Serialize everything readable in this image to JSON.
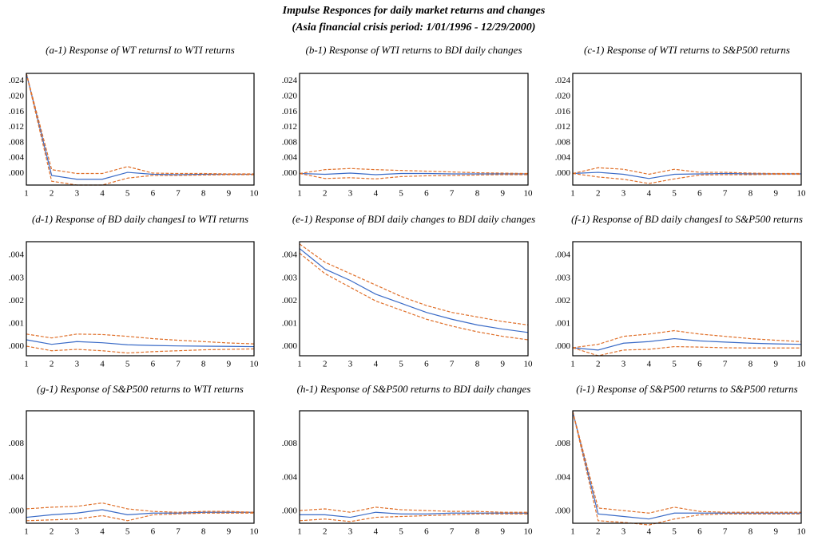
{
  "header": {
    "title": "Impulse Responces for daily market returns and changes",
    "subtitle": "(Asia financial crisis period: 1/01/1996 - 12/29/2000)"
  },
  "chart_data": [
    {
      "type": "line",
      "title": "(a-1) Response of WT returnsI to WTI returns",
      "x": [
        1,
        2,
        3,
        4,
        5,
        6,
        7,
        8,
        9,
        10
      ],
      "xlim": [
        1,
        10
      ],
      "xticks": [
        1,
        2,
        3,
        4,
        5,
        6,
        7,
        8,
        9,
        10
      ],
      "ylim": [
        -0.003,
        0.026
      ],
      "yticks": [
        {
          "value": 0,
          "label": ".000"
        },
        {
          "value": 0.004,
          "label": ".004"
        },
        {
          "value": 0.008,
          "label": ".008"
        },
        {
          "value": 0.012,
          "label": ".012"
        },
        {
          "value": 0.016,
          "label": ".016"
        },
        {
          "value": 0.02,
          "label": ".020"
        },
        {
          "value": 0.024,
          "label": ".024"
        }
      ],
      "grid": false,
      "series": [
        {
          "color": "#3a6bc7",
          "dash": false,
          "values": [
            0.026,
            -0.0005,
            -0.0015,
            -0.0015,
            0.0003,
            -0.0002,
            -0.0003,
            -0.0002,
            -0.0002,
            -0.0002
          ]
        },
        {
          "color": "#e0702a",
          "dash": true,
          "values": [
            0.026,
            0.001,
            0,
            0,
            0.0018,
            0.0001,
            0,
            0,
            -0.0001,
            -0.0001
          ]
        },
        {
          "color": "#e0702a",
          "dash": true,
          "values": [
            0.026,
            -0.002,
            -0.003,
            -0.003,
            -0.0012,
            -0.0005,
            -0.0005,
            -0.0004,
            -0.0003,
            -0.0003
          ]
        }
      ]
    },
    {
      "type": "line",
      "title": "(b-1) Response of WTI returns to BDI daily changes",
      "x": [
        1,
        2,
        3,
        4,
        5,
        6,
        7,
        8,
        9,
        10
      ],
      "xlim": [
        1,
        10
      ],
      "xticks": [
        1,
        2,
        3,
        4,
        5,
        6,
        7,
        8,
        9,
        10
      ],
      "ylim": [
        -0.003,
        0.026
      ],
      "yticks": [
        {
          "value": 0,
          "label": ".000"
        },
        {
          "value": 0.004,
          "label": ".004"
        },
        {
          "value": 0.008,
          "label": ".008"
        },
        {
          "value": 0.012,
          "label": ".012"
        },
        {
          "value": 0.016,
          "label": ".016"
        },
        {
          "value": 0.02,
          "label": ".020"
        },
        {
          "value": 0.024,
          "label": ".024"
        }
      ],
      "grid": false,
      "series": [
        {
          "color": "#3a6bc7",
          "dash": false,
          "values": [
            0,
            -0.0002,
            0.0001,
            -0.0003,
            0,
            0,
            -0.0001,
            -0.0001,
            -0.0001,
            -0.0001
          ]
        },
        {
          "color": "#e0702a",
          "dash": true,
          "values": [
            0,
            0.001,
            0.0013,
            0.001,
            0.0008,
            0.0006,
            0.0004,
            0.0002,
            0.0001,
            0
          ]
        },
        {
          "color": "#e0702a",
          "dash": true,
          "values": [
            0,
            -0.0013,
            -0.0011,
            -0.0014,
            -0.0008,
            -0.0006,
            -0.0005,
            -0.0004,
            -0.0003,
            -0.0003
          ]
        }
      ]
    },
    {
      "type": "line",
      "title": "(c-1) Response of WTI returns to S&P500 returns",
      "x": [
        1,
        2,
        3,
        4,
        5,
        6,
        7,
        8,
        9,
        10
      ],
      "xlim": [
        1,
        10
      ],
      "xticks": [
        1,
        2,
        3,
        4,
        5,
        6,
        7,
        8,
        9,
        10
      ],
      "ylim": [
        -0.003,
        0.026
      ],
      "yticks": [
        {
          "value": 0,
          "label": ".000"
        },
        {
          "value": 0.004,
          "label": ".004"
        },
        {
          "value": 0.008,
          "label": ".008"
        },
        {
          "value": 0.012,
          "label": ".012"
        },
        {
          "value": 0.016,
          "label": ".016"
        },
        {
          "value": 0.02,
          "label": ".020"
        },
        {
          "value": 0.024,
          "label": ".024"
        }
      ],
      "grid": false,
      "series": [
        {
          "color": "#3a6bc7",
          "dash": false,
          "values": [
            0,
            0.0003,
            -0.0002,
            -0.0013,
            -0.0002,
            -0.0001,
            0,
            -0.0001,
            -0.0001,
            -0.0001
          ]
        },
        {
          "color": "#e0702a",
          "dash": true,
          "values": [
            0,
            0.0015,
            0.0011,
            -0.0002,
            0.0011,
            0.0003,
            0.0003,
            0.0001,
            0,
            0
          ]
        },
        {
          "color": "#e0702a",
          "dash": true,
          "values": [
            0,
            -0.0009,
            -0.0015,
            -0.0026,
            -0.0014,
            -0.0004,
            -0.0003,
            -0.0003,
            -0.0002,
            -0.0002
          ]
        }
      ]
    },
    {
      "type": "line",
      "title": "(d-1) Response of BD daily changesI to WTI returns",
      "x": [
        1,
        2,
        3,
        4,
        5,
        6,
        7,
        8,
        9,
        10
      ],
      "xlim": [
        1,
        10
      ],
      "xticks": [
        1,
        2,
        3,
        4,
        5,
        6,
        7,
        8,
        9,
        10
      ],
      "ylim": [
        -0.0004,
        0.0046
      ],
      "yticks": [
        {
          "value": 0,
          "label": ".000"
        },
        {
          "value": 0.001,
          "label": ".001"
        },
        {
          "value": 0.002,
          "label": ".002"
        },
        {
          "value": 0.003,
          "label": ".003"
        },
        {
          "value": 0.004,
          "label": ".004"
        }
      ],
      "grid": false,
      "series": [
        {
          "color": "#3a6bc7",
          "dash": false,
          "values": [
            0.0003,
            0.0001,
            0.00022,
            0.00017,
            8e-05,
            5e-05,
            3e-05,
            2e-05,
            1e-05,
            0
          ]
        },
        {
          "color": "#e0702a",
          "dash": true,
          "values": [
            0.00055,
            0.00038,
            0.00055,
            0.00053,
            0.00045,
            0.00035,
            0.00028,
            0.00022,
            0.00016,
            0.00012
          ]
        },
        {
          "color": "#e0702a",
          "dash": true,
          "values": [
            2e-05,
            -0.00018,
            -0.00012,
            -0.00018,
            -0.00028,
            -0.00022,
            -0.00018,
            -0.00014,
            -0.00012,
            -0.0001
          ]
        }
      ]
    },
    {
      "type": "line",
      "title": "(e-1) Response of BDI daily changes to BDI daily changes",
      "x": [
        1,
        2,
        3,
        4,
        5,
        6,
        7,
        8,
        9,
        10
      ],
      "xlim": [
        1,
        10
      ],
      "xticks": [
        1,
        2,
        3,
        4,
        5,
        6,
        7,
        8,
        9,
        10
      ],
      "ylim": [
        -0.0004,
        0.0046
      ],
      "yticks": [
        {
          "value": 0,
          "label": ".000"
        },
        {
          "value": 0.001,
          "label": ".001"
        },
        {
          "value": 0.002,
          "label": ".002"
        },
        {
          "value": 0.003,
          "label": ".003"
        },
        {
          "value": 0.004,
          "label": ".004"
        }
      ],
      "grid": false,
      "series": [
        {
          "color": "#3a6bc7",
          "dash": false,
          "values": [
            0.0043,
            0.0034,
            0.0029,
            0.0023,
            0.0019,
            0.0015,
            0.0012,
            0.00095,
            0.00077,
            0.00062
          ]
        },
        {
          "color": "#e0702a",
          "dash": true,
          "values": [
            0.0045,
            0.0037,
            0.0032,
            0.0027,
            0.0022,
            0.0018,
            0.0015,
            0.0013,
            0.0011,
            0.00095
          ]
        },
        {
          "color": "#e0702a",
          "dash": true,
          "values": [
            0.0041,
            0.0032,
            0.0026,
            0.002,
            0.0016,
            0.0012,
            0.0009,
            0.00065,
            0.00045,
            0.0003
          ]
        }
      ]
    },
    {
      "type": "line",
      "title": "(f-1) Response of BD daily changesI to S&P500 returns",
      "x": [
        1,
        2,
        3,
        4,
        5,
        6,
        7,
        8,
        9,
        10
      ],
      "xlim": [
        1,
        10
      ],
      "xticks": [
        1,
        2,
        3,
        4,
        5,
        6,
        7,
        8,
        9,
        10
      ],
      "ylim": [
        -0.0004,
        0.0046
      ],
      "yticks": [
        {
          "value": 0,
          "label": ".000"
        },
        {
          "value": 0.001,
          "label": ".001"
        },
        {
          "value": 0.002,
          "label": ".002"
        },
        {
          "value": 0.003,
          "label": ".003"
        },
        {
          "value": 0.004,
          "label": ".004"
        }
      ],
      "grid": false,
      "series": [
        {
          "color": "#3a6bc7",
          "dash": false,
          "values": [
            -5e-05,
            -0.00015,
            0.00015,
            0.00022,
            0.00035,
            0.00025,
            0.0002,
            0.00015,
            0.00012,
            0.0001
          ]
        },
        {
          "color": "#e0702a",
          "dash": true,
          "values": [
            -5e-05,
            0.0001,
            0.00045,
            0.00055,
            0.0007,
            0.00055,
            0.00045,
            0.00035,
            0.00028,
            0.00022
          ]
        },
        {
          "color": "#e0702a",
          "dash": true,
          "values": [
            -5e-05,
            -0.0004,
            -0.00015,
            -0.00012,
            0,
            -2e-05,
            -5e-05,
            -6e-05,
            -6e-05,
            -6e-05
          ]
        }
      ]
    },
    {
      "type": "line",
      "title": "(g-1) Response of S&P500 returns to WTI returns",
      "x": [
        1,
        2,
        3,
        4,
        5,
        6,
        7,
        8,
        9,
        10
      ],
      "xlim": [
        1,
        10
      ],
      "xticks": [
        1,
        2,
        3,
        4,
        5,
        6,
        7,
        8,
        9,
        10
      ],
      "ylim": [
        -0.0014,
        0.0119
      ],
      "yticks": [
        {
          "value": 0,
          "label": ".000"
        },
        {
          "value": 0.004,
          "label": ".004"
        },
        {
          "value": 0.008,
          "label": ".008"
        }
      ],
      "grid": false,
      "series": [
        {
          "color": "#3a6bc7",
          "dash": false,
          "values": [
            -0.0007,
            -0.0004,
            -0.0002,
            0.0002,
            -0.0004,
            -0.0002,
            -0.0002,
            -0.0001,
            -0.0001,
            -0.0001
          ]
        },
        {
          "color": "#e0702a",
          "dash": true,
          "values": [
            0.0003,
            0.0005,
            0.0006,
            0.001,
            0.0003,
            0,
            -0.0001,
            0,
            0,
            -0.0001
          ]
        },
        {
          "color": "#e0702a",
          "dash": true,
          "values": [
            -0.0011,
            -0.001,
            -0.0009,
            -0.0005,
            -0.0011,
            -0.0004,
            -0.0003,
            -0.0002,
            -0.0002,
            -0.0002
          ]
        }
      ]
    },
    {
      "type": "line",
      "title": "(h-1) Response of S&P500 returns to BDI daily changes",
      "x": [
        1,
        2,
        3,
        4,
        5,
        6,
        7,
        8,
        9,
        10
      ],
      "xlim": [
        1,
        10
      ],
      "xticks": [
        1,
        2,
        3,
        4,
        5,
        6,
        7,
        8,
        9,
        10
      ],
      "ylim": [
        -0.0014,
        0.0119
      ],
      "yticks": [
        {
          "value": 0,
          "label": ".000"
        },
        {
          "value": 0.004,
          "label": ".004"
        },
        {
          "value": 0.008,
          "label": ".008"
        }
      ],
      "grid": false,
      "series": [
        {
          "color": "#3a6bc7",
          "dash": false,
          "values": [
            -0.0004,
            -0.0004,
            -0.0007,
            -0.0001,
            -0.0003,
            -0.0003,
            -0.0002,
            -0.0002,
            -0.0002,
            -0.0002
          ]
        },
        {
          "color": "#e0702a",
          "dash": true,
          "values": [
            0.0001,
            0.0003,
            -0.0001,
            0.0005,
            0.0002,
            0.0001,
            0,
            0,
            -0.0001,
            -0.0001
          ]
        },
        {
          "color": "#e0702a",
          "dash": true,
          "values": [
            -0.0011,
            -0.0009,
            -0.0012,
            -0.0007,
            -0.0006,
            -0.0005,
            -0.0004,
            -0.0003,
            -0.0003,
            -0.0003
          ]
        }
      ]
    },
    {
      "type": "line",
      "title": "(i-1) Response of S&P500 returns to S&P500 returns",
      "x": [
        1,
        2,
        3,
        4,
        5,
        6,
        7,
        8,
        9,
        10
      ],
      "xlim": [
        1,
        10
      ],
      "xticks": [
        1,
        2,
        3,
        4,
        5,
        6,
        7,
        8,
        9,
        10
      ],
      "ylim": [
        -0.0014,
        0.0119
      ],
      "yticks": [
        {
          "value": 0,
          "label": ".000"
        },
        {
          "value": 0.004,
          "label": ".004"
        },
        {
          "value": 0.008,
          "label": ".008"
        }
      ],
      "grid": false,
      "series": [
        {
          "color": "#3a6bc7",
          "dash": false,
          "values": [
            0.0118,
            -0.0003,
            -0.0006,
            -0.0009,
            -0.0002,
            -0.0002,
            -0.0002,
            -0.0002,
            -0.0002,
            -0.0002
          ]
        },
        {
          "color": "#e0702a",
          "dash": true,
          "values": [
            0.0118,
            0.0004,
            0.0001,
            -0.0002,
            0.0005,
            0,
            -0.0001,
            -0.0001,
            -0.0001,
            -0.0001
          ]
        },
        {
          "color": "#e0702a",
          "dash": true,
          "values": [
            0.0118,
            -0.0011,
            -0.0013,
            -0.0016,
            -0.0009,
            -0.0004,
            -0.0003,
            -0.0003,
            -0.0003,
            -0.0003
          ]
        }
      ]
    }
  ]
}
